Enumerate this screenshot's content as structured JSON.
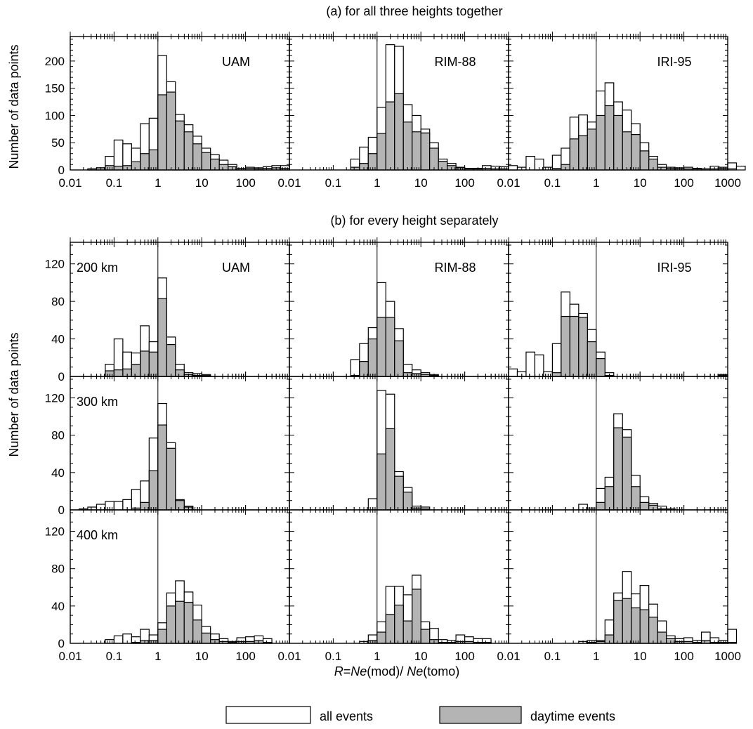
{
  "figure": {
    "title_a": "(a) for all three heights together",
    "title_b": "(b) for every height separately",
    "ylabel": "Number of data points",
    "xlabel_parts": [
      "R",
      "=",
      "Ne",
      "(mod)/ ",
      "Ne",
      "(tomo)"
    ],
    "legend": {
      "all": "all events",
      "day": "daytime events"
    },
    "colors": {
      "all_fill": "#ffffff",
      "day_fill": "#b4b4b4",
      "stroke": "#000000"
    }
  },
  "chart_data": {
    "type": "bar",
    "scale": "log10 histogram, bin width 0.2 decades",
    "x_ticks": [
      "0.01",
      "0.1",
      "1",
      "10",
      "100",
      "1000"
    ],
    "xlim": [
      0.01,
      1000
    ],
    "bin_start_log10": -2,
    "bin_width_log10": 0.2,
    "vertical_reference_line_x": 1,
    "series_names": [
      "all events",
      "daytime events"
    ],
    "panels": [
      {
        "row": "a",
        "model": "UAM",
        "height": "",
        "ylim": [
          0,
          245
        ],
        "yticks": [
          0,
          50,
          100,
          150,
          200
        ],
        "all": [
          0,
          0,
          2,
          4,
          25,
          55,
          48,
          40,
          85,
          95,
          210,
          162,
          102,
          83,
          62,
          40,
          28,
          18,
          10,
          3,
          5,
          4,
          6,
          8,
          8,
          0,
          0,
          0,
          0,
          0
        ],
        "day": [
          0,
          0,
          2,
          4,
          8,
          7,
          8,
          15,
          30,
          37,
          138,
          143,
          90,
          70,
          48,
          32,
          20,
          10,
          6,
          3,
          3,
          2,
          3,
          4,
          3,
          0,
          0,
          0,
          0,
          0
        ]
      },
      {
        "row": "a",
        "model": "RIM-88",
        "height": "",
        "ylim": [
          0,
          245
        ],
        "yticks": [
          0,
          50,
          100,
          150,
          200
        ],
        "all": [
          0,
          0,
          0,
          0,
          0,
          0,
          0,
          20,
          42,
          60,
          115,
          230,
          227,
          120,
          100,
          75,
          50,
          20,
          12,
          5,
          3,
          3,
          8,
          7,
          6,
          5,
          0,
          0,
          0,
          0
        ],
        "day": [
          0,
          0,
          0,
          0,
          0,
          0,
          0,
          5,
          12,
          30,
          67,
          125,
          140,
          88,
          70,
          68,
          40,
          16,
          8,
          4,
          2,
          2,
          3,
          2,
          2,
          2,
          0,
          0,
          0,
          0
        ]
      },
      {
        "row": "a",
        "model": "IRI-95",
        "height": "",
        "ylim": [
          0,
          245
        ],
        "yticks": [
          0,
          50,
          100,
          150,
          200
        ],
        "all": [
          8,
          5,
          25,
          20,
          5,
          27,
          40,
          97,
          101,
          88,
          145,
          160,
          125,
          110,
          85,
          50,
          25,
          10,
          5,
          4,
          5,
          3,
          2,
          7,
          5,
          13,
          7,
          0,
          0,
          0
        ],
        "day": [
          0,
          0,
          0,
          0,
          0,
          3,
          10,
          57,
          63,
          75,
          100,
          118,
          100,
          70,
          65,
          35,
          20,
          5,
          3,
          3,
          2,
          2,
          2,
          2,
          3,
          2,
          0,
          0,
          0,
          0
        ]
      },
      {
        "row": "b",
        "model": "UAM",
        "height": "200 km",
        "ylim": [
          0,
          143
        ],
        "yticks": [
          0,
          40,
          80,
          120
        ],
        "all": [
          0,
          0,
          0,
          0,
          13,
          40,
          26,
          25,
          54,
          37,
          105,
          42,
          13,
          4,
          3,
          2,
          0,
          0,
          0,
          0,
          0,
          0,
          0,
          0,
          0,
          0,
          0,
          0,
          0,
          0
        ],
        "day": [
          0,
          0,
          0,
          0,
          6,
          7,
          8,
          13,
          27,
          26,
          83,
          34,
          7,
          2,
          1,
          1,
          0,
          0,
          0,
          0,
          0,
          0,
          0,
          0,
          0,
          0,
          0,
          0,
          0,
          0
        ],
        "label_model": true
      },
      {
        "row": "b",
        "model": "RIM-88",
        "height": "200 km",
        "ylim": [
          0,
          143
        ],
        "yticks": [
          0,
          40,
          80,
          120
        ],
        "all": [
          0,
          0,
          0,
          0,
          0,
          0,
          0,
          18,
          35,
          52,
          100,
          80,
          51,
          13,
          7,
          4,
          2,
          0,
          0,
          0,
          0,
          0,
          0,
          0,
          0,
          0,
          0,
          0,
          0,
          0
        ],
        "day": [
          0,
          0,
          0,
          0,
          0,
          0,
          0,
          1,
          16,
          40,
          63,
          63,
          38,
          4,
          3,
          2,
          1,
          0,
          0,
          0,
          0,
          0,
          0,
          0,
          0,
          0,
          0,
          0,
          0,
          0
        ],
        "label_model": true
      },
      {
        "row": "b",
        "model": "IRI-95",
        "height": "200 km",
        "ylim": [
          0,
          143
        ],
        "yticks": [
          0,
          40,
          80,
          120
        ],
        "all": [
          8,
          5,
          26,
          23,
          5,
          35,
          90,
          77,
          67,
          50,
          26,
          4,
          0,
          0,
          0,
          0,
          0,
          0,
          0,
          0,
          0,
          0,
          0,
          0,
          2,
          0,
          0,
          0,
          0,
          0
        ],
        "day": [
          0,
          0,
          0,
          0,
          0,
          4,
          64,
          64,
          63,
          37,
          19,
          1,
          0,
          0,
          0,
          0,
          0,
          0,
          0,
          0,
          0,
          0,
          0,
          0,
          1,
          0,
          0,
          0,
          0,
          0
        ],
        "label_model": true
      },
      {
        "row": "b",
        "model": "UAM",
        "height": "300 km",
        "ylim": [
          0,
          143
        ],
        "yticks": [
          0,
          40,
          80,
          120
        ],
        "all": [
          0,
          1,
          3,
          6,
          9,
          9,
          11,
          22,
          31,
          77,
          114,
          72,
          11,
          4,
          0,
          0,
          0,
          0,
          0,
          0,
          0,
          0,
          0,
          0,
          0,
          0,
          0,
          0,
          0,
          0
        ],
        "day": [
          0,
          0,
          0,
          0,
          0,
          0,
          0,
          2,
          8,
          42,
          91,
          66,
          10,
          3,
          0,
          0,
          0,
          0,
          0,
          0,
          0,
          0,
          0,
          0,
          0,
          0,
          0,
          0,
          0,
          0
        ],
        "label_model": false
      },
      {
        "row": "b",
        "model": "RIM-88",
        "height": "300 km",
        "ylim": [
          0,
          143
        ],
        "yticks": [
          0,
          40,
          80,
          120
        ],
        "all": [
          0,
          0,
          0,
          0,
          0,
          0,
          0,
          0,
          0,
          12,
          128,
          124,
          41,
          24,
          4,
          3,
          0,
          0,
          0,
          0,
          0,
          0,
          0,
          0,
          0,
          0,
          0,
          0,
          0,
          0
        ],
        "day": [
          0,
          0,
          0,
          0,
          0,
          0,
          0,
          0,
          0,
          0,
          60,
          87,
          36,
          19,
          2,
          1,
          0,
          0,
          0,
          0,
          0,
          0,
          0,
          0,
          0,
          0,
          0,
          0,
          0,
          0
        ],
        "label_model": false
      },
      {
        "row": "b",
        "model": "IRI-95",
        "height": "300 km",
        "ylim": [
          0,
          143
        ],
        "yticks": [
          0,
          40,
          80,
          120
        ],
        "all": [
          0,
          0,
          0,
          0,
          0,
          0,
          0,
          0,
          6,
          2,
          23,
          35,
          103,
          86,
          37,
          14,
          7,
          4,
          1,
          0,
          0,
          0,
          0,
          0,
          0,
          0,
          0,
          0,
          0,
          0
        ],
        "day": [
          0,
          0,
          0,
          0,
          0,
          0,
          0,
          0,
          0,
          0,
          8,
          25,
          88,
          78,
          25,
          8,
          5,
          1,
          0,
          0,
          0,
          0,
          0,
          0,
          0,
          0,
          0,
          0,
          0,
          0
        ],
        "label_model": false
      },
      {
        "row": "b",
        "model": "UAM",
        "height": "400 km",
        "ylim": [
          0,
          143
        ],
        "yticks": [
          0,
          40,
          80,
          120
        ],
        "all": [
          0,
          0,
          0,
          0,
          4,
          8,
          10,
          7,
          15,
          9,
          22,
          54,
          67,
          55,
          41,
          18,
          10,
          5,
          2,
          6,
          7,
          8,
          5,
          0,
          0,
          0,
          0,
          0,
          0,
          0
        ],
        "day": [
          0,
          0,
          0,
          0,
          0,
          0,
          0,
          1,
          3,
          3,
          15,
          40,
          45,
          44,
          25,
          11,
          4,
          2,
          1,
          2,
          2,
          3,
          1,
          0,
          0,
          0,
          0,
          0,
          0,
          0
        ],
        "label_model": false
      },
      {
        "row": "b",
        "model": "RIM-88",
        "height": "400 km",
        "ylim": [
          0,
          143
        ],
        "yticks": [
          0,
          40,
          80,
          120
        ],
        "all": [
          0,
          0,
          0,
          0,
          0,
          0,
          0,
          0,
          2,
          9,
          23,
          61,
          61,
          52,
          73,
          23,
          16,
          4,
          3,
          9,
          7,
          5,
          5,
          0,
          0,
          0,
          0,
          0,
          0,
          0
        ],
        "day": [
          0,
          0,
          0,
          0,
          0,
          0,
          0,
          0,
          0,
          3,
          12,
          31,
          41,
          24,
          58,
          15,
          4,
          1,
          1,
          2,
          2,
          1,
          1,
          0,
          0,
          0,
          0,
          0,
          0,
          0
        ],
        "label_model": false
      },
      {
        "row": "b",
        "model": "IRI-95",
        "height": "400 km",
        "ylim": [
          0,
          143
        ],
        "yticks": [
          0,
          40,
          80,
          120
        ],
        "all": [
          0,
          0,
          0,
          0,
          0,
          0,
          0,
          0,
          2,
          3,
          3,
          25,
          54,
          77,
          53,
          62,
          42,
          24,
          8,
          5,
          6,
          3,
          12,
          6,
          3,
          15,
          0,
          0,
          0,
          0
        ],
        "day": [
          0,
          0,
          0,
          0,
          0,
          0,
          0,
          0,
          0,
          1,
          2,
          9,
          46,
          48,
          38,
          36,
          28,
          12,
          5,
          2,
          2,
          1,
          3,
          1,
          1,
          1,
          0,
          0,
          0,
          0
        ],
        "label_model": false
      }
    ]
  }
}
